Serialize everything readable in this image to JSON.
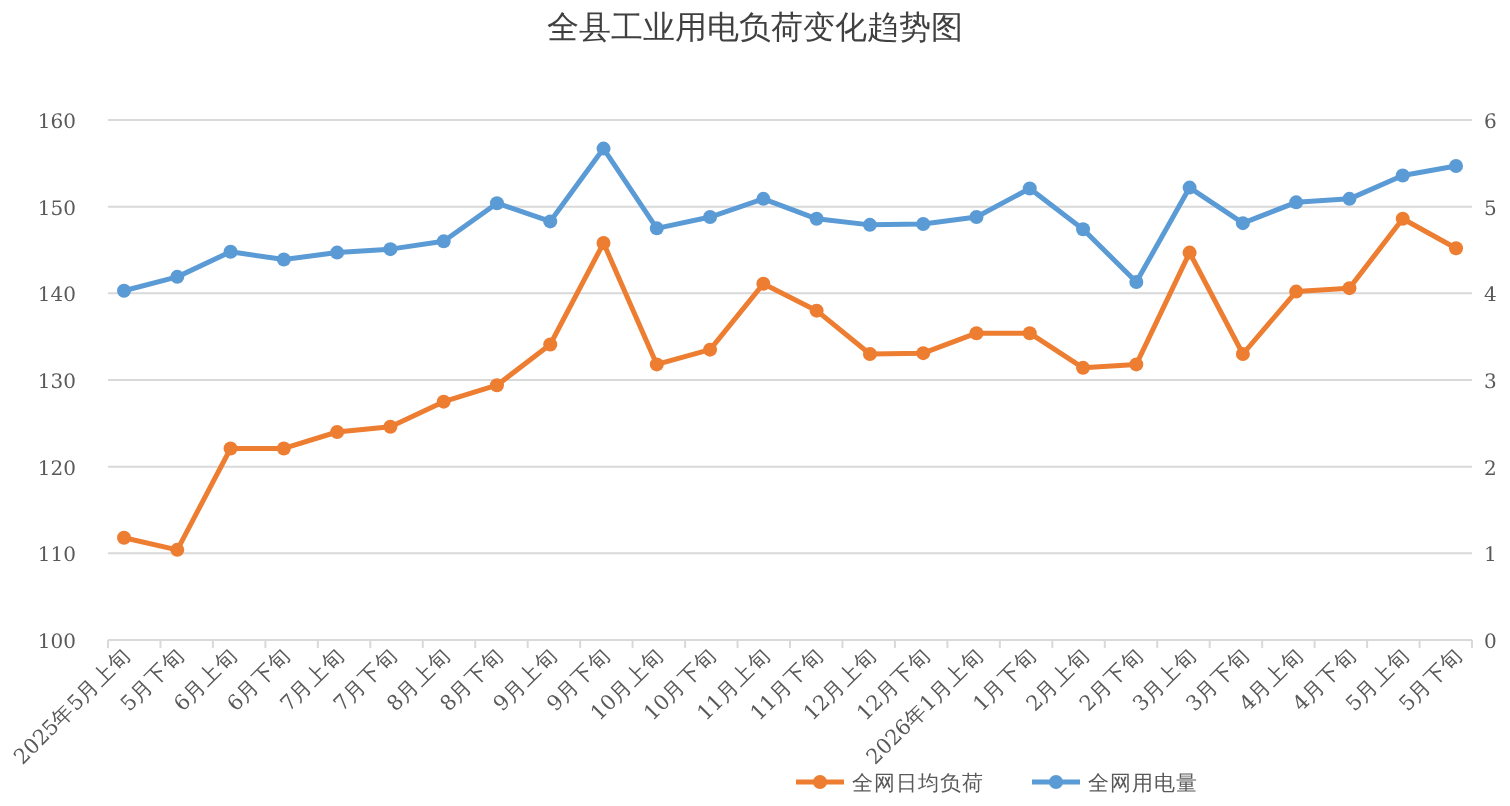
{
  "chart_data": {
    "type": "line",
    "title": "全县工业用电负荷变化趋势图",
    "categories": [
      "2025年5月上旬",
      "5月下旬",
      "6月上旬",
      "6月下旬",
      "7月上旬",
      "7月下旬",
      "8月上旬",
      "8月下旬",
      "9月上旬",
      "9月下旬",
      "10月上旬",
      "10月下旬",
      "11月上旬",
      "11月下旬",
      "12月上旬",
      "12月下旬",
      "2026年1月上旬",
      "1月下旬",
      "2月上旬",
      "2月下旬",
      "3月上旬",
      "3月下旬",
      "4月上旬",
      "4月下旬",
      "5月上旬",
      "5月下旬"
    ],
    "series": [
      {
        "name": "全网日均负荷",
        "color": "#ed7d31",
        "values": [
          111.8,
          110.4,
          122.1,
          122.1,
          124.0,
          124.6,
          127.5,
          129.4,
          134.1,
          145.8,
          131.8,
          133.5,
          141.1,
          138.0,
          133.0,
          133.1,
          135.4,
          135.4,
          131.4,
          131.8,
          144.7,
          133.0,
          140.2,
          140.6,
          148.6,
          145.2
        ]
      },
      {
        "name": "全网用电量",
        "color": "#5b9bd5",
        "axis": "y2",
        "values": [
          4.03,
          4.19,
          4.48,
          4.39,
          4.47,
          4.51,
          4.6,
          5.04,
          4.83,
          5.67,
          4.75,
          4.88,
          5.09,
          4.86,
          4.79,
          4.8,
          4.88,
          5.21,
          4.74,
          4.13,
          5.22,
          4.81,
          5.05,
          5.09,
          5.36,
          5.47
        ]
      }
    ],
    "ylim": [
      100,
      160
    ],
    "yticks": [
      100,
      110,
      120,
      130,
      140,
      150,
      160
    ],
    "y2lim": [
      0,
      6
    ],
    "y2ticks": [
      0,
      1,
      2,
      3,
      4,
      5,
      6
    ],
    "grid": "y",
    "legend": "bottom",
    "marker": "circle",
    "line_style": "solid"
  }
}
